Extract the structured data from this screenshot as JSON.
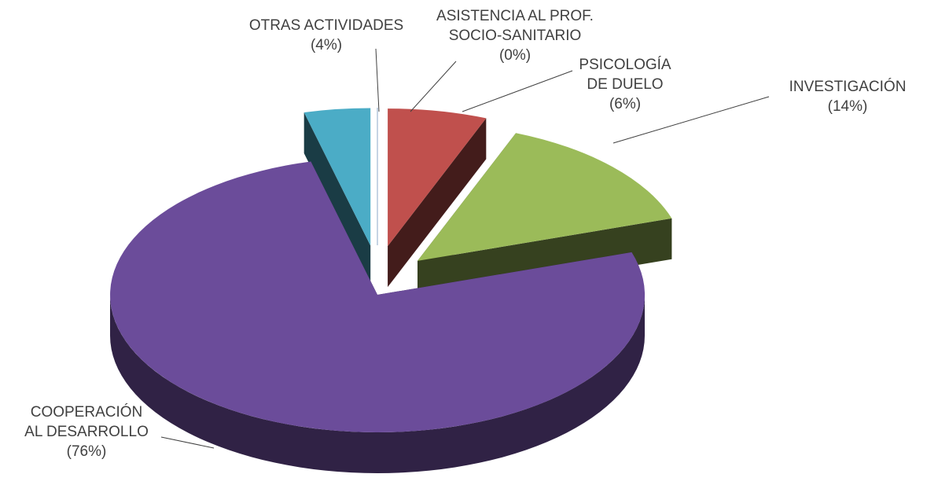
{
  "chart_data": {
    "type": "pie",
    "categories": [
      "ASISTENCIA AL PROF.\nSOCIO-SANITARIO",
      "PSICOLOGÍA\nDE DUELO",
      "INVESTIGACIÓN",
      "COOPERACIÓN\nAL DESARROLLO",
      "OTRAS ACTIVIDADES"
    ],
    "values": [
      0,
      6,
      14,
      76,
      4
    ],
    "value_labels": [
      "(0%)",
      "(6%)",
      "(14%)",
      "(76%)",
      "(4%)"
    ],
    "colors": [
      "#dce6f2",
      "#c0504d",
      "#9bbb59",
      "#6b4c9a",
      "#4bacc6"
    ]
  }
}
